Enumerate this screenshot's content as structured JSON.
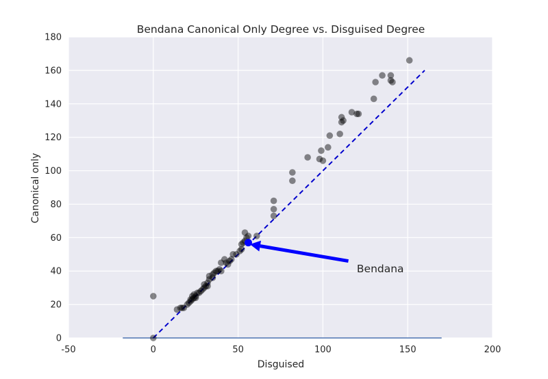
{
  "chart_data": {
    "type": "scatter",
    "title": "Bendana Canonical Only Degree vs. Disguised Degree",
    "xlabel": "Disguised",
    "ylabel": "Canonical only",
    "xlim": [
      -50,
      200
    ],
    "ylim": [
      0,
      180
    ],
    "xticks": [
      -50,
      0,
      50,
      100,
      150,
      200
    ],
    "yticks": [
      0,
      20,
      40,
      60,
      80,
      100,
      120,
      140,
      160,
      180
    ],
    "grid": true,
    "colors": {
      "background": "#eaeaf2",
      "grid": "#ffffff",
      "points": "#000000",
      "highlight": "#0000ff",
      "diagonal": "#0000cc",
      "baseline": "#4c72b0"
    },
    "points": [
      [
        0,
        25
      ],
      [
        0,
        0
      ],
      [
        14,
        17
      ],
      [
        16,
        18
      ],
      [
        17,
        18
      ],
      [
        18,
        18
      ],
      [
        20,
        20
      ],
      [
        21,
        21
      ],
      [
        22,
        22
      ],
      [
        22,
        23
      ],
      [
        23,
        23
      ],
      [
        23,
        25
      ],
      [
        24,
        24
      ],
      [
        24,
        26
      ],
      [
        25,
        24
      ],
      [
        25,
        25
      ],
      [
        26,
        27
      ],
      [
        27,
        27
      ],
      [
        28,
        28
      ],
      [
        29,
        29
      ],
      [
        30,
        30
      ],
      [
        30,
        32
      ],
      [
        31,
        31
      ],
      [
        32,
        31
      ],
      [
        32,
        33
      ],
      [
        33,
        35
      ],
      [
        33,
        37
      ],
      [
        35,
        36
      ],
      [
        35,
        38
      ],
      [
        36,
        39
      ],
      [
        37,
        40
      ],
      [
        38,
        40
      ],
      [
        39,
        41
      ],
      [
        40,
        40
      ],
      [
        40,
        45
      ],
      [
        42,
        47
      ],
      [
        43,
        45
      ],
      [
        44,
        44
      ],
      [
        45,
        46
      ],
      [
        46,
        47
      ],
      [
        47,
        50
      ],
      [
        49,
        50
      ],
      [
        51,
        52
      ],
      [
        52,
        53
      ],
      [
        52,
        56
      ],
      [
        53,
        57
      ],
      [
        54,
        58
      ],
      [
        54,
        63
      ],
      [
        55,
        60
      ],
      [
        56,
        61
      ],
      [
        61,
        61
      ],
      [
        71,
        73
      ],
      [
        71,
        77
      ],
      [
        71,
        82
      ],
      [
        82,
        94
      ],
      [
        82,
        99
      ],
      [
        91,
        108
      ],
      [
        98,
        107
      ],
      [
        99,
        112
      ],
      [
        100,
        106
      ],
      [
        103,
        114
      ],
      [
        104,
        121
      ],
      [
        110,
        122
      ],
      [
        111,
        129
      ],
      [
        111,
        132
      ],
      [
        112,
        130
      ],
      [
        117,
        135
      ],
      [
        120,
        134
      ],
      [
        121,
        134
      ],
      [
        130,
        143
      ],
      [
        131,
        153
      ],
      [
        135,
        157
      ],
      [
        140,
        157
      ],
      [
        140,
        154
      ],
      [
        141,
        153
      ],
      [
        151,
        166
      ]
    ],
    "diagonal": [
      [
        0,
        0
      ],
      [
        160,
        160
      ]
    ],
    "baseline": [
      -18,
      170
    ],
    "highlight": {
      "name": "Bendana",
      "x": 56,
      "y": 57
    },
    "annotation": {
      "text": "Bendana",
      "text_x": 120,
      "text_y": 40,
      "arrow_from": [
        115,
        46
      ],
      "arrow_to": [
        57,
        56
      ]
    }
  }
}
